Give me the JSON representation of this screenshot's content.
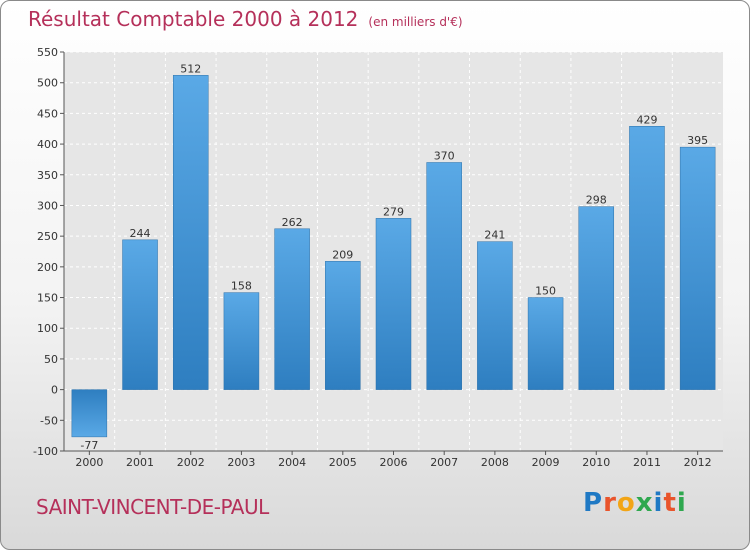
{
  "chart_data": {
    "type": "bar",
    "title": "Résultat Comptable 2000 à 2012",
    "subtitle": "(en milliers d'€)",
    "categories": [
      "2000",
      "2001",
      "2002",
      "2003",
      "2004",
      "2005",
      "2006",
      "2007",
      "2008",
      "2009",
      "2010",
      "2011",
      "2012"
    ],
    "values": [
      -77,
      244,
      512,
      158,
      262,
      209,
      279,
      370,
      241,
      150,
      298,
      429,
      395
    ],
    "ylim": [
      -100,
      550
    ],
    "yticks": [
      -100,
      -50,
      0,
      50,
      100,
      150,
      200,
      250,
      300,
      350,
      400,
      450,
      500,
      550
    ],
    "xlabel": "",
    "ylabel": "",
    "grid": true
  },
  "footer": {
    "town": "SAINT-VINCENT-DE-PAUL",
    "logo_letters": [
      "P",
      "r",
      "o",
      "x",
      "i",
      "t",
      "i"
    ],
    "logo_colors": [
      "#1f79c4",
      "#e9542b",
      "#f2a516",
      "#2fa84f",
      "#1f79c4",
      "#e9542b",
      "#2fa84f"
    ]
  },
  "colors": {
    "title": "#b5305a",
    "bar_light": "#5aa9e6",
    "bar_dark": "#2e7ec0",
    "grid": "#ffffff"
  }
}
